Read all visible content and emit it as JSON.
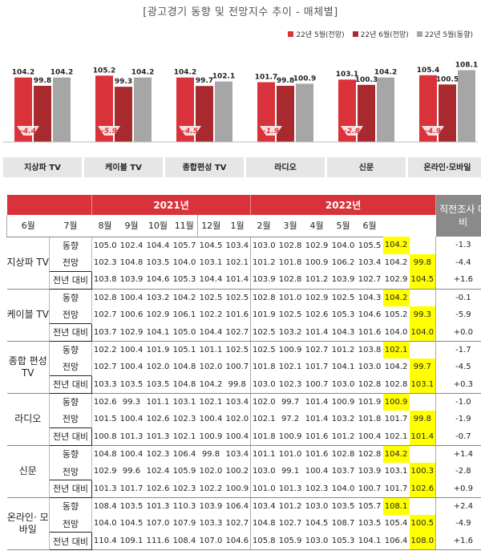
{
  "title": "[광고경기 동향 및 전망지수 추이 - 매체별]",
  "legend": [
    {
      "label": "22년 5월(전망)",
      "color": "#d9323a"
    },
    {
      "label": "22년 6월(전망)",
      "color": "#a82a2e"
    },
    {
      "label": "22년 5월(동향)",
      "color": "#a6a6a6"
    }
  ],
  "chart_data": {
    "type": "bar",
    "categories": [
      "지상파 TV",
      "케이블 TV",
      "종합편성 TV",
      "라디오",
      "신문",
      "온라인·모바일"
    ],
    "series": [
      {
        "name": "22년 5월(전망)",
        "values": [
          104.2,
          105.2,
          104.2,
          101.7,
          103.1,
          105.4
        ]
      },
      {
        "name": "22년 6월(전망)",
        "values": [
          99.8,
          99.3,
          99.7,
          99.8,
          100.3,
          100.5
        ]
      },
      {
        "name": "22년 5월(동향)",
        "values": [
          104.2,
          104.2,
          102.1,
          100.9,
          104.2,
          108.1
        ]
      }
    ],
    "value_labels": [
      [
        "104.2",
        "99.8",
        "104.2"
      ],
      [
        "105.2",
        "99.3",
        "104.2"
      ],
      [
        "104.2",
        "99.7",
        "102.1"
      ],
      [
        "101.7",
        "99.8",
        "100.9"
      ],
      [
        "103.1",
        "100.3",
        "104.2"
      ],
      [
        "105.4",
        "100.5",
        "108.1"
      ]
    ],
    "change_labels": [
      "-4.4",
      "-5.9",
      "-4.5",
      "-1.9",
      "-2.8",
      "-4.9"
    ],
    "ylim": [
      0,
      110
    ]
  },
  "table": {
    "year_2021": "2021년",
    "year_2022": "2022년",
    "prev_header": "직전조사 대비",
    "months": [
      "6월",
      "7월",
      "8월",
      "9월",
      "10월",
      "11월",
      "12월",
      "1월",
      "2월",
      "3월",
      "4월",
      "5월",
      "6월"
    ],
    "groups": [
      {
        "name": "지상파 TV",
        "rows": [
          {
            "metric": "동향",
            "values": [
              "105.0",
              "102.4",
              "104.4",
              "105.7",
              "104.5",
              "103.4",
              "103.0",
              "102.8",
              "102.9",
              "104.0",
              "105.5",
              "104.2",
              ""
            ],
            "diff": "-1.3"
          },
          {
            "metric": "전망",
            "values": [
              "102.3",
              "104.8",
              "103.5",
              "104.0",
              "103.1",
              "102.1",
              "101.2",
              "101.8",
              "100.9",
              "106.2",
              "103.4",
              "104.2",
              "99.8"
            ],
            "diff": "-4.4"
          },
          {
            "metric": "전년 대비",
            "values": [
              "103.8",
              "103.9",
              "104.6",
              "105.3",
              "104.4",
              "101.4",
              "103.9",
              "102.8",
              "101.2",
              "103.9",
              "102.7",
              "102.9",
              "104.5"
            ],
            "diff": "+1.6"
          }
        ]
      },
      {
        "name": "케이블 TV",
        "rows": [
          {
            "metric": "동향",
            "values": [
              "102.8",
              "100.4",
              "103.2",
              "104.2",
              "102.5",
              "102.5",
              "102.8",
              "101.0",
              "102.9",
              "102.5",
              "104.3",
              "104.2",
              ""
            ],
            "diff": "-0.1"
          },
          {
            "metric": "전망",
            "values": [
              "102.7",
              "100.6",
              "102.9",
              "106.1",
              "102.2",
              "101.6",
              "101.9",
              "102.5",
              "102.6",
              "105.3",
              "104.6",
              "105.2",
              "99.3"
            ],
            "diff": "-5.9"
          },
          {
            "metric": "전년 대비",
            "values": [
              "103.7",
              "102.9",
              "104.1",
              "105.0",
              "104.4",
              "102.7",
              "102.5",
              "103.2",
              "101.4",
              "104.3",
              "101.6",
              "104.0",
              "104.0"
            ],
            "diff": "+0.0"
          }
        ]
      },
      {
        "name": "종합 편성 TV",
        "rows": [
          {
            "metric": "동향",
            "values": [
              "102.2",
              "100.4",
              "101.9",
              "105.1",
              "101.1",
              "102.5",
              "102.5",
              "100.9",
              "102.7",
              "101.2",
              "103.8",
              "102.1",
              ""
            ],
            "diff": "-1.7"
          },
          {
            "metric": "전망",
            "values": [
              "102.7",
              "100.4",
              "102.0",
              "104.8",
              "102.0",
              "100.7",
              "101.8",
              "102.1",
              "101.7",
              "104.1",
              "103.0",
              "104.2",
              "99.7"
            ],
            "diff": "-4.5"
          },
          {
            "metric": "전년 대비",
            "values": [
              "103.3",
              "103.5",
              "103.5",
              "104.8",
              "104.2",
              "99.8",
              "103.0",
              "102.3",
              "100.7",
              "103.0",
              "102.8",
              "102.8",
              "103.1"
            ],
            "diff": "+0.3"
          }
        ]
      },
      {
        "name": "라디오",
        "rows": [
          {
            "metric": "동향",
            "values": [
              "102.6",
              "99.3",
              "101.1",
              "103.1",
              "102.1",
              "103.4",
              "102.0",
              "99.7",
              "101.4",
              "100.9",
              "101.9",
              "100.9",
              ""
            ],
            "diff": "-1.0"
          },
          {
            "metric": "전망",
            "values": [
              "101.5",
              "100.4",
              "102.6",
              "102.3",
              "100.4",
              "102.0",
              "102.1",
              "97.2",
              "101.4",
              "103.2",
              "101.8",
              "101.7",
              "99.8"
            ],
            "diff": "-1.9"
          },
          {
            "metric": "전년 대비",
            "values": [
              "100.8",
              "101.3",
              "101.3",
              "102.1",
              "100.9",
              "100.4",
              "101.8",
              "100.9",
              "101.6",
              "101.2",
              "100.4",
              "102.1",
              "101.4"
            ],
            "diff": "-0.7"
          }
        ]
      },
      {
        "name": "신문",
        "rows": [
          {
            "metric": "동향",
            "values": [
              "104.8",
              "100.4",
              "102.3",
              "106.4",
              "99.8",
              "103.4",
              "101.1",
              "101.0",
              "101.6",
              "102.8",
              "102.8",
              "104.2",
              ""
            ],
            "diff": "+1.4"
          },
          {
            "metric": "전망",
            "values": [
              "102.9",
              "99.6",
              "102.4",
              "105.9",
              "102.0",
              "100.2",
              "103.0",
              "99.1",
              "100.4",
              "103.7",
              "103.9",
              "103.1",
              "100.3"
            ],
            "diff": "-2.8"
          },
          {
            "metric": "전년 대비",
            "values": [
              "101.3",
              "101.7",
              "102.6",
              "102.3",
              "102.2",
              "100.9",
              "101.0",
              "101.3",
              "102.3",
              "104.0",
              "100.7",
              "101.7",
              "102.6"
            ],
            "diff": "+0.9"
          }
        ]
      },
      {
        "name": "온라인· 모바일",
        "rows": [
          {
            "metric": "동향",
            "values": [
              "108.4",
              "103.5",
              "101.3",
              "110.3",
              "103.9",
              "106.4",
              "103.4",
              "101.2",
              "103.0",
              "103.5",
              "105.7",
              "108.1",
              ""
            ],
            "diff": "+2.4"
          },
          {
            "metric": "전망",
            "values": [
              "104.0",
              "104.5",
              "107.0",
              "107.9",
              "103.3",
              "102.7",
              "104.8",
              "102.7",
              "104.5",
              "108.7",
              "103.5",
              "105.4",
              "100.5"
            ],
            "diff": "-4.9"
          },
          {
            "metric": "전년 대비",
            "values": [
              "110.4",
              "109.1",
              "111.6",
              "108.4",
              "107.0",
              "104.6",
              "105.8",
              "105.9",
              "103.0",
              "105.3",
              "104.1",
              "106.4",
              "108.0"
            ],
            "diff": "+1.6"
          }
        ]
      }
    ]
  }
}
